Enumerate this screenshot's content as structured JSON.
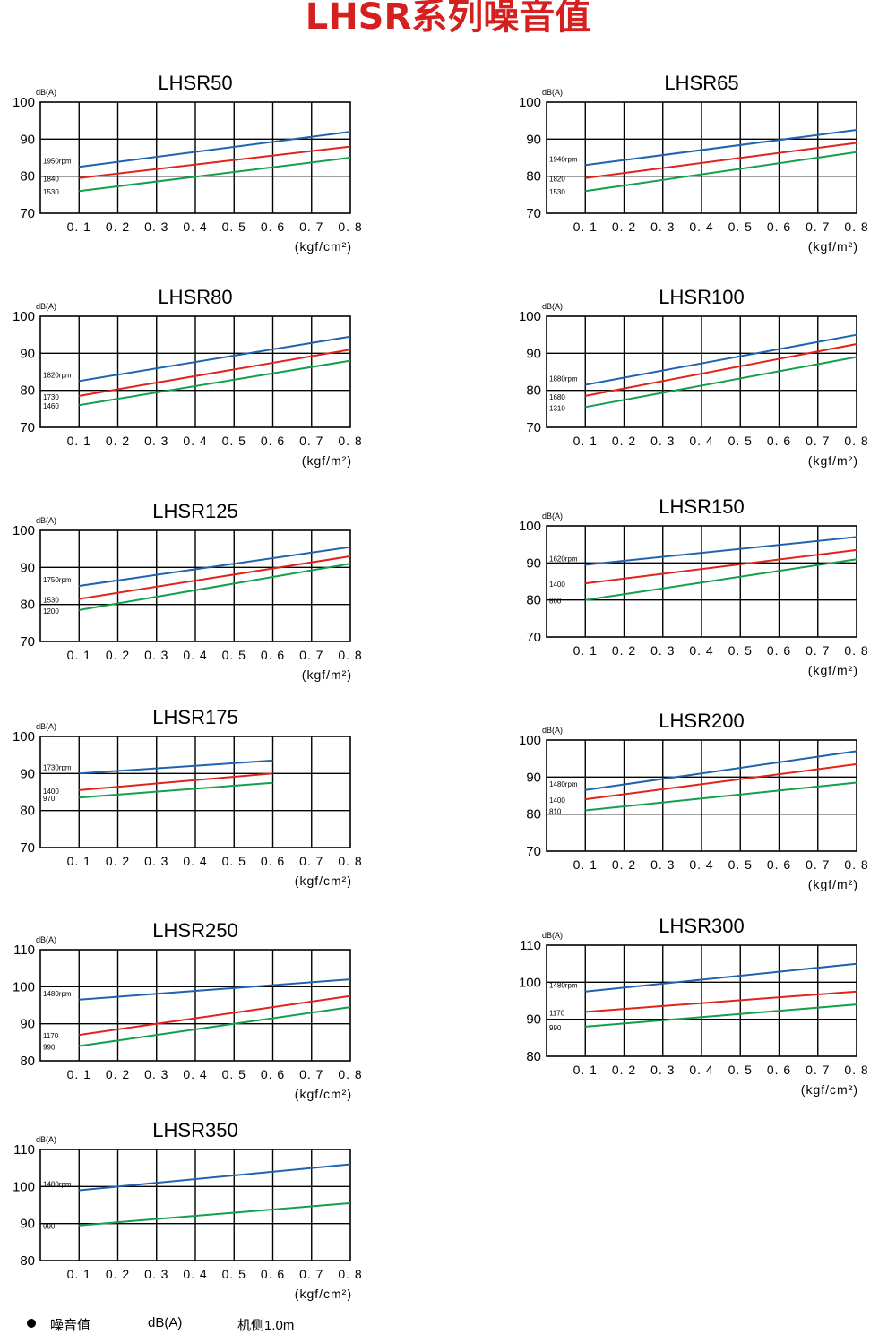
{
  "title": "LHSR系列噪音值",
  "footer": {
    "label": "噪音值",
    "unit": "dB(A)",
    "note": "机侧1.0m"
  },
  "colors": {
    "blue": "#1f63b0",
    "red": "#e2231a",
    "green": "#12a04a",
    "title": "#d62020"
  },
  "chart_data": [
    {
      "type": "line",
      "title": "LHSR50",
      "ylabel": "dB(A)",
      "xunit": "(kgf/cm²)",
      "ylim": [
        70,
        100
      ],
      "xticks": [
        "0. 1",
        "0. 2",
        "0. 3",
        "0. 4",
        "0. 5",
        "0. 6",
        "0. 7",
        "0. 8"
      ],
      "yticks": [
        "70",
        "80",
        "90",
        "100"
      ],
      "series": [
        {
          "name": "1950rpm",
          "color": "blue",
          "x": [
            0.1,
            0.8
          ],
          "y": [
            82.5,
            92
          ]
        },
        {
          "name": "1840",
          "color": "red",
          "x": [
            0.1,
            0.8
          ],
          "y": [
            79.5,
            88
          ]
        },
        {
          "name": "1530",
          "color": "green",
          "x": [
            0.1,
            0.8
          ],
          "y": [
            76,
            85
          ]
        }
      ]
    },
    {
      "type": "line",
      "title": "LHSR65",
      "ylabel": "dB(A)",
      "xunit": "(kgf/m²)",
      "ylim": [
        70,
        100
      ],
      "xticks": [
        "0. 1",
        "0. 2",
        "0. 3",
        "0. 4",
        "0. 5",
        "0. 6",
        "0. 7",
        "0. 8"
      ],
      "yticks": [
        "70",
        "80",
        "90",
        "100"
      ],
      "series": [
        {
          "name": "1940rpm",
          "color": "blue",
          "x": [
            0.1,
            0.8
          ],
          "y": [
            83,
            92.5
          ]
        },
        {
          "name": "1820",
          "color": "red",
          "x": [
            0.1,
            0.8
          ],
          "y": [
            79.5,
            89
          ]
        },
        {
          "name": "1530",
          "color": "green",
          "x": [
            0.1,
            0.8
          ],
          "y": [
            76,
            86.5
          ]
        }
      ]
    },
    {
      "type": "line",
      "title": "LHSR80",
      "ylabel": "dB(A)",
      "xunit": "(kgf/m²)",
      "ylim": [
        70,
        100
      ],
      "xticks": [
        "0. 1",
        "0. 2",
        "0. 3",
        "0. 4",
        "0. 5",
        "0. 6",
        "0. 7",
        "0. 8"
      ],
      "yticks": [
        "70",
        "80",
        "90",
        "100"
      ],
      "series": [
        {
          "name": "1820rpm",
          "color": "blue",
          "x": [
            0.1,
            0.8
          ],
          "y": [
            82.5,
            94.5
          ]
        },
        {
          "name": "1730",
          "color": "red",
          "x": [
            0.1,
            0.8
          ],
          "y": [
            78.5,
            91
          ]
        },
        {
          "name": "1460",
          "color": "green",
          "x": [
            0.1,
            0.8
          ],
          "y": [
            76,
            88
          ]
        }
      ]
    },
    {
      "type": "line",
      "title": "LHSR100",
      "ylabel": "dB(A)",
      "xunit": "(kgf/m²)",
      "ylim": [
        70,
        100
      ],
      "xticks": [
        "0. 1",
        "0. 2",
        "0. 3",
        "0. 4",
        "0. 5",
        "0. 6",
        "0. 7",
        "0. 8"
      ],
      "yticks": [
        "70",
        "80",
        "90",
        "100"
      ],
      "series": [
        {
          "name": "1880rpm",
          "color": "blue",
          "x": [
            0.1,
            0.8
          ],
          "y": [
            81.5,
            95
          ]
        },
        {
          "name": "1680",
          "color": "red",
          "x": [
            0.1,
            0.8
          ],
          "y": [
            78.5,
            92.5
          ]
        },
        {
          "name": "1310",
          "color": "green",
          "x": [
            0.1,
            0.8
          ],
          "y": [
            75.5,
            89
          ]
        }
      ]
    },
    {
      "type": "line",
      "title": "LHSR125",
      "ylabel": "dB(A)",
      "xunit": "(kgf/m²)",
      "ylim": [
        70,
        100
      ],
      "xticks": [
        "0. 1",
        "0. 2",
        "0. 3",
        "0. 4",
        "0. 5",
        "0. 6",
        "0. 7",
        "0. 8"
      ],
      "yticks": [
        "70",
        "80",
        "90",
        "100"
      ],
      "series": [
        {
          "name": "1750rpm",
          "color": "blue",
          "x": [
            0.1,
            0.8
          ],
          "y": [
            85,
            95.5
          ]
        },
        {
          "name": "1530",
          "color": "red",
          "x": [
            0.1,
            0.8
          ],
          "y": [
            81.5,
            93
          ]
        },
        {
          "name": "1200",
          "color": "green",
          "x": [
            0.1,
            0.8
          ],
          "y": [
            78.5,
            91
          ]
        }
      ]
    },
    {
      "type": "line",
      "title": "LHSR150",
      "ylabel": "dB(A)",
      "xunit": "(kgf/m²)",
      "ylim": [
        70,
        100
      ],
      "xticks": [
        "0. 1",
        "0. 2",
        "0. 3",
        "0. 4",
        "0. 5",
        "0. 6",
        "0. 7",
        "0. 8"
      ],
      "yticks": [
        "70",
        "80",
        "90",
        "100"
      ],
      "series": [
        {
          "name": "1620rpm",
          "color": "blue",
          "x": [
            0.1,
            0.8
          ],
          "y": [
            89.5,
            97
          ]
        },
        {
          "name": "1400",
          "color": "red",
          "x": [
            0.1,
            0.8
          ],
          "y": [
            84.5,
            93.5
          ]
        },
        {
          "name": "860",
          "color": "green",
          "x": [
            0.1,
            0.8
          ],
          "y": [
            80,
            91
          ]
        }
      ]
    },
    {
      "type": "line",
      "title": "LHSR175",
      "ylabel": "dB(A)",
      "xunit": "(kgf/cm²)",
      "ylim": [
        70,
        100
      ],
      "xticks": [
        "0. 1",
        "0. 2",
        "0. 3",
        "0. 4",
        "0. 5",
        "0. 6",
        "0. 7",
        "0. 8"
      ],
      "yticks": [
        "70",
        "80",
        "90",
        "100"
      ],
      "series": [
        {
          "name": "1730rpm",
          "color": "blue",
          "x": [
            0.1,
            0.6
          ],
          "y": [
            90,
            93.5
          ]
        },
        {
          "name": "1400",
          "color": "red",
          "x": [
            0.1,
            0.6
          ],
          "y": [
            85.5,
            90
          ]
        },
        {
          "name": "970",
          "color": "green",
          "x": [
            0.1,
            0.6
          ],
          "y": [
            83.5,
            87.5
          ]
        }
      ]
    },
    {
      "type": "line",
      "title": "LHSR200",
      "ylabel": "dB(A)",
      "xunit": "(kgf/m²)",
      "ylim": [
        70,
        100
      ],
      "xticks": [
        "0. 1",
        "0. 2",
        "0. 3",
        "0. 4",
        "0. 5",
        "0. 6",
        "0. 7",
        "0. 8"
      ],
      "yticks": [
        "70",
        "80",
        "90",
        "100"
      ],
      "series": [
        {
          "name": "1480rpm",
          "color": "blue",
          "x": [
            0.1,
            0.8
          ],
          "y": [
            86.5,
            97
          ]
        },
        {
          "name": "1400",
          "color": "red",
          "x": [
            0.1,
            0.8
          ],
          "y": [
            84,
            93.5
          ]
        },
        {
          "name": "810",
          "color": "green",
          "x": [
            0.1,
            0.8
          ],
          "y": [
            81,
            88.5
          ]
        }
      ]
    },
    {
      "type": "line",
      "title": "LHSR250",
      "ylabel": "dB(A)",
      "xunit": "(kgf/cm²)",
      "ylim": [
        80,
        110
      ],
      "xticks": [
        "0. 1",
        "0. 2",
        "0. 3",
        "0. 4",
        "0. 5",
        "0. 6",
        "0. 7",
        "0. 8"
      ],
      "yticks": [
        "80",
        "90",
        "100",
        "110"
      ],
      "series": [
        {
          "name": "1480rpm",
          "color": "blue",
          "x": [
            0.1,
            0.8
          ],
          "y": [
            96.5,
            102
          ]
        },
        {
          "name": "1170",
          "color": "red",
          "x": [
            0.1,
            0.8
          ],
          "y": [
            87,
            97.5
          ]
        },
        {
          "name": "990",
          "color": "green",
          "x": [
            0.1,
            0.8
          ],
          "y": [
            84,
            94.5
          ]
        }
      ]
    },
    {
      "type": "line",
      "title": "LHSR300",
      "ylabel": "dB(A)",
      "xunit": "(kgf/cm²)",
      "ylim": [
        80,
        110
      ],
      "xticks": [
        "0. 1",
        "0. 2",
        "0. 3",
        "0. 4",
        "0. 5",
        "0. 6",
        "0. 7",
        "0. 8"
      ],
      "yticks": [
        "80",
        "90",
        "100",
        "110"
      ],
      "series": [
        {
          "name": "1480rpm",
          "color": "blue",
          "x": [
            0.1,
            0.8
          ],
          "y": [
            97.5,
            105
          ]
        },
        {
          "name": "1170",
          "color": "red",
          "x": [
            0.1,
            0.8
          ],
          "y": [
            92,
            97.5
          ]
        },
        {
          "name": "990",
          "color": "green",
          "x": [
            0.1,
            0.8
          ],
          "y": [
            88,
            94
          ]
        }
      ]
    },
    {
      "type": "line",
      "title": "LHSR350",
      "ylabel": "dB(A)",
      "xunit": "(kgf/cm²)",
      "ylim": [
        80,
        110
      ],
      "xticks": [
        "0. 1",
        "0. 2",
        "0. 3",
        "0. 4",
        "0. 5",
        "0. 6",
        "0. 7",
        "0. 8"
      ],
      "yticks": [
        "80",
        "90",
        "100",
        "110"
      ],
      "series": [
        {
          "name": "1480rpm",
          "color": "blue",
          "x": [
            0.1,
            0.8
          ],
          "y": [
            99,
            106
          ]
        },
        {
          "name": "990",
          "color": "green",
          "x": [
            0.1,
            0.8
          ],
          "y": [
            89.5,
            95.5
          ]
        }
      ]
    }
  ]
}
